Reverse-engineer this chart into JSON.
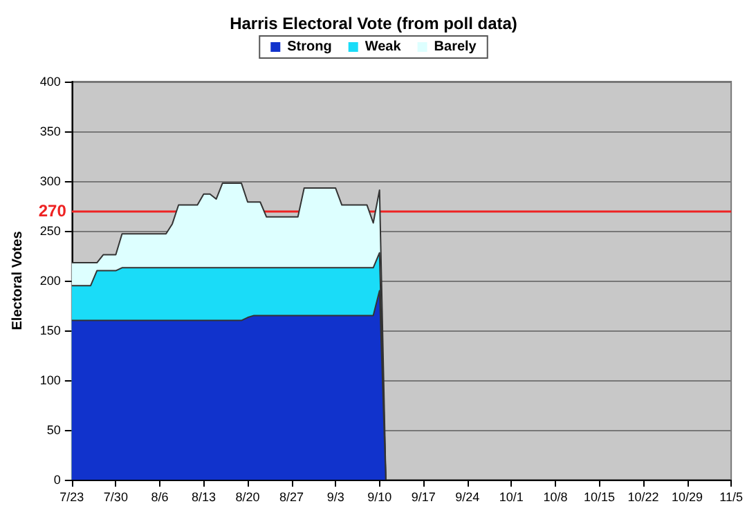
{
  "chart_data": {
    "type": "area",
    "title": "Harris Electoral Vote (from poll data)",
    "ylabel": "Electoral Votes",
    "stacked": true,
    "x": [
      "--07-23",
      "--07-26",
      "--07-27",
      "--07-28",
      "--07-30",
      "--07-31",
      "--08-07",
      "--08-08",
      "--08-09",
      "--08-12",
      "--08-13",
      "--08-14",
      "--08-15",
      "--08-16",
      "--08-19",
      "--08-20",
      "--08-21",
      "--08-22",
      "--08-23",
      "--08-28",
      "--08-29",
      "--09-03",
      "--09-04",
      "--09-08",
      "--09-09",
      "--09-10",
      "--09-11"
    ],
    "series": [
      {
        "name": "Strong",
        "color": "#1133cc",
        "values": [
          160,
          160,
          160,
          160,
          160,
          160,
          160,
          160,
          160,
          160,
          160,
          160,
          160,
          160,
          160,
          163,
          165,
          165,
          165,
          165,
          165,
          165,
          165,
          165,
          165,
          190,
          0
        ]
      },
      {
        "name": "Weak",
        "color": "#1adcf8",
        "values": [
          35,
          35,
          50,
          50,
          50,
          53,
          53,
          53,
          53,
          53,
          53,
          53,
          53,
          53,
          53,
          50,
          48,
          48,
          48,
          48,
          48,
          48,
          48,
          48,
          48,
          38,
          0
        ]
      },
      {
        "name": "Barely",
        "color": "#ddffff",
        "values": [
          23,
          23,
          8,
          16,
          16,
          34,
          34,
          44,
          63,
          63,
          74,
          74,
          69,
          85,
          85,
          66,
          66,
          66,
          51,
          51,
          80,
          80,
          63,
          63,
          45,
          63,
          0
        ]
      }
    ],
    "xlim": [
      "--07-23",
      "--11-05"
    ],
    "xticks": [
      {
        "value": "--07-23",
        "label": "7/23"
      },
      {
        "value": "--07-30",
        "label": "7/30"
      },
      {
        "value": "--08-06",
        "label": "8/6"
      },
      {
        "value": "--08-13",
        "label": "8/13"
      },
      {
        "value": "--08-20",
        "label": "8/20"
      },
      {
        "value": "--08-27",
        "label": "8/27"
      },
      {
        "value": "--09-03",
        "label": "9/3"
      },
      {
        "value": "--09-10",
        "label": "9/10"
      },
      {
        "value": "--09-17",
        "label": "9/17"
      },
      {
        "value": "--09-24",
        "label": "9/24"
      },
      {
        "value": "--10-01",
        "label": "10/1"
      },
      {
        "value": "--10-08",
        "label": "10/8"
      },
      {
        "value": "--10-15",
        "label": "10/15"
      },
      {
        "value": "--10-22",
        "label": "10/22"
      },
      {
        "value": "--10-29",
        "label": "10/29"
      },
      {
        "value": "--11-05",
        "label": "11/5"
      }
    ],
    "ylim": [
      0,
      400
    ],
    "yticks": [
      0,
      50,
      100,
      150,
      200,
      250,
      300,
      350,
      400
    ],
    "ref_lines": [
      {
        "axis": "y",
        "value": 270,
        "label": "270",
        "color": "#ee2222"
      }
    ],
    "grid": "y",
    "legend": "top",
    "marker": "none",
    "line_style": "solid"
  }
}
